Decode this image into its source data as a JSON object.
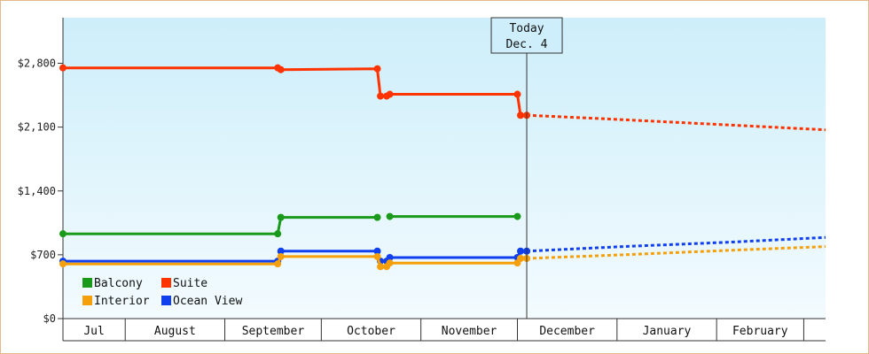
{
  "chart_data": {
    "type": "line",
    "title": "",
    "xlabel": "",
    "ylabel": "",
    "ylim": [
      0,
      3300
    ],
    "y_ticks": [
      {
        "value": 0,
        "label": "$0"
      },
      {
        "value": 700,
        "label": "$700"
      },
      {
        "value": 1400,
        "label": "$1,400"
      },
      {
        "value": 2100,
        "label": "$2,100"
      },
      {
        "value": 2800,
        "label": "$2,800"
      }
    ],
    "x_axis": {
      "min_day": 0,
      "max_day": 245,
      "months": [
        {
          "label": "Jul",
          "start": 0,
          "end": 20
        },
        {
          "label": "August",
          "start": 20,
          "end": 52
        },
        {
          "label": "September",
          "start": 52,
          "end": 83
        },
        {
          "label": "October",
          "start": 83,
          "end": 115
        },
        {
          "label": "November",
          "start": 115,
          "end": 146
        },
        {
          "label": "December",
          "start": 146,
          "end": 178
        },
        {
          "label": "January",
          "start": 178,
          "end": 210
        },
        {
          "label": "February",
          "start": 210,
          "end": 238
        }
      ]
    },
    "today": {
      "label_line1": "Today",
      "label_line2": "Dec. 4",
      "day": 149
    },
    "legend": {
      "placement": "bottom-left",
      "items": [
        {
          "name": "Balcony",
          "color": "#1a9a1a"
        },
        {
          "name": "Suite",
          "color": "#ff3300"
        },
        {
          "name": "Interior",
          "color": "#f5a00a"
        },
        {
          "name": "Ocean View",
          "color": "#1040ee"
        }
      ]
    },
    "series": [
      {
        "name": "Suite",
        "color": "#ff3300",
        "segments": [
          [
            [
              0,
              2750
            ],
            [
              69,
              2750
            ],
            [
              70,
              2730
            ],
            [
              101,
              2740
            ],
            [
              102,
              2440
            ],
            [
              104,
              2440
            ],
            [
              105,
              2460
            ],
            [
              146,
              2460
            ],
            [
              147,
              2230
            ],
            [
              149,
              2230
            ]
          ]
        ],
        "markers": [
          [
            0,
            2750
          ],
          [
            69,
            2750
          ],
          [
            70,
            2730
          ],
          [
            101,
            2740
          ],
          [
            102,
            2440
          ],
          [
            104,
            2440
          ],
          [
            105,
            2460
          ],
          [
            146,
            2460
          ],
          [
            147,
            2230
          ],
          [
            149,
            2230
          ]
        ],
        "forecast": [
          [
            149,
            2230
          ],
          [
            175,
            2190
          ],
          [
            210,
            2130
          ],
          [
            245,
            2070
          ]
        ]
      },
      {
        "name": "Balcony",
        "color": "#1a9a1a",
        "segments": [
          [
            [
              0,
              930
            ],
            [
              69,
              930
            ],
            [
              70,
              1110
            ],
            [
              101,
              1110
            ]
          ],
          [
            [
              105,
              1120
            ],
            [
              146,
              1120
            ]
          ]
        ],
        "markers": [
          [
            0,
            930
          ],
          [
            69,
            930
          ],
          [
            70,
            1110
          ],
          [
            101,
            1110
          ],
          [
            105,
            1120
          ],
          [
            146,
            1120
          ]
        ],
        "forecast": []
      },
      {
        "name": "Ocean View",
        "color": "#1040ee",
        "segments": [
          [
            [
              0,
              630
            ],
            [
              69,
              630
            ],
            [
              70,
              740
            ],
            [
              101,
              740
            ],
            [
              102,
              630
            ],
            [
              104,
              630
            ],
            [
              105,
              670
            ],
            [
              146,
              670
            ],
            [
              147,
              740
            ],
            [
              149,
              740
            ]
          ]
        ],
        "markers": [
          [
            0,
            630
          ],
          [
            69,
            630
          ],
          [
            70,
            740
          ],
          [
            101,
            740
          ],
          [
            102,
            630
          ],
          [
            104,
            630
          ],
          [
            105,
            670
          ],
          [
            146,
            670
          ],
          [
            147,
            740
          ],
          [
            149,
            740
          ]
        ],
        "forecast": [
          [
            149,
            740
          ],
          [
            180,
            790
          ],
          [
            215,
            840
          ],
          [
            245,
            890
          ]
        ]
      },
      {
        "name": "Interior",
        "color": "#f5a00a",
        "segments": [
          [
            [
              0,
              600
            ],
            [
              69,
              600
            ],
            [
              70,
              680
            ],
            [
              101,
              680
            ],
            [
              102,
              570
            ],
            [
              104,
              570
            ],
            [
              105,
              610
            ],
            [
              146,
              610
            ],
            [
              147,
              660
            ],
            [
              149,
              660
            ]
          ]
        ],
        "markers": [
          [
            0,
            600
          ],
          [
            69,
            600
          ],
          [
            70,
            680
          ],
          [
            101,
            680
          ],
          [
            102,
            570
          ],
          [
            104,
            570
          ],
          [
            105,
            610
          ],
          [
            146,
            610
          ],
          [
            147,
            660
          ],
          [
            149,
            660
          ]
        ],
        "forecast": [
          [
            149,
            660
          ],
          [
            180,
            700
          ],
          [
            215,
            750
          ],
          [
            245,
            790
          ]
        ]
      }
    ]
  }
}
